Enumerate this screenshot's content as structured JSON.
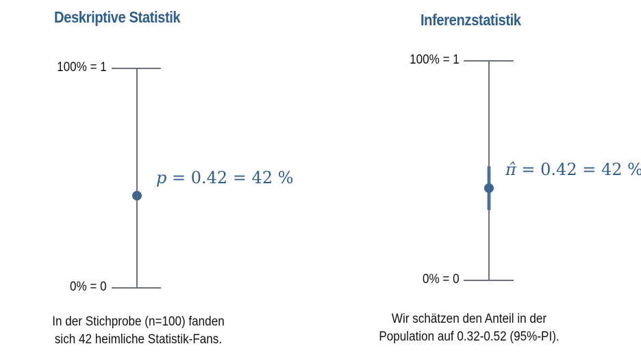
{
  "left_panel": {
    "title": "Deskriptive Statistik",
    "top_label": "100% = 1",
    "bottom_label": "0% = 0",
    "estimate_symbol": "p",
    "estimate_rest": " = 0.42 = 42 %",
    "value": 0.42,
    "caption_line1": "In der Stichprobe (n=100) fanden",
    "caption_line2": "sich 42 heimliche Statistik-Fans."
  },
  "right_panel": {
    "title": "Inferenzstatistik",
    "top_label": "100% = 1",
    "bottom_label": "0% = 0",
    "estimate_symbol": "π̂",
    "estimate_rest": " = 0.42 = 42 %",
    "value": 0.42,
    "interval": [
      0.32,
      0.52
    ],
    "caption_line1": "Wir schätzen den Anteil in der",
    "caption_line2": "Population auf 0.32-0.52 (95%-PI)."
  },
  "colors": {
    "accent": "#2f5d8c",
    "point": "#3e6690",
    "axis": "#6b7178"
  }
}
